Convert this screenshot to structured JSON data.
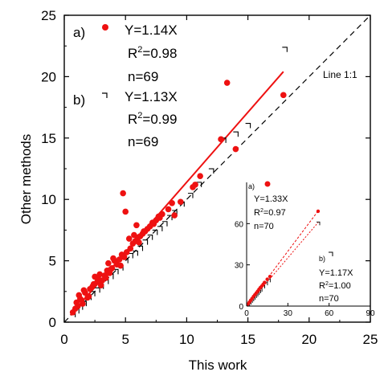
{
  "chart_data": {
    "type": "scatter",
    "xlabel": "This work",
    "ylabel": "Other methods",
    "xlim": [
      0,
      25
    ],
    "ylim": [
      0,
      25
    ],
    "xticks": [
      "0",
      "5",
      "10",
      "15",
      "20",
      "25"
    ],
    "yticks": [
      "0",
      "5",
      "10",
      "15",
      "20",
      "25"
    ],
    "grid": false,
    "series": [
      {
        "name": "a)",
        "marker": "filled-circle",
        "color": "#ee1111",
        "x": [
          0.7,
          0.9,
          1.0,
          1.2,
          1.3,
          1.5,
          1.7,
          1.9,
          2.1,
          2.3,
          2.5,
          2.7,
          2.9,
          3.1,
          3.3,
          3.5,
          3.7,
          3.9,
          4.1,
          4.3,
          4.5,
          4.7,
          4.9,
          5.1,
          5.4,
          5.6,
          5.8,
          6.0,
          6.2,
          6.4,
          6.6,
          6.8,
          7.0,
          7.2,
          7.5,
          7.8,
          8.0,
          8.5,
          9.5,
          10.5,
          11.1,
          13.3,
          14.0,
          17.9,
          4.8,
          3.0,
          1.1,
          2.8,
          3.6,
          5.0,
          5.7,
          6.1,
          7.3,
          4.6,
          3.8,
          2.0,
          1.6,
          2.4,
          4.0,
          5.3,
          6.5,
          7.7,
          10.7,
          12.8,
          8.8,
          9.0,
          1.4,
          3.4,
          5.9
        ],
        "y": [
          0.8,
          1.1,
          1.6,
          2.2,
          1.9,
          1.5,
          2.4,
          2.0,
          2.7,
          2.9,
          3.7,
          3.3,
          3.9,
          3.4,
          3.8,
          4.2,
          4.0,
          4.4,
          5.0,
          4.7,
          5.1,
          5.5,
          5.3,
          5.7,
          6.0,
          6.4,
          6.6,
          6.9,
          7.0,
          7.2,
          7.4,
          7.6,
          7.8,
          8.1,
          8.3,
          8.5,
          8.8,
          9.2,
          9.8,
          11.0,
          11.9,
          19.5,
          14.1,
          18.5,
          10.5,
          3.0,
          1.3,
          3.5,
          4.8,
          9.0,
          7.1,
          6.5,
          8.0,
          4.6,
          4.3,
          2.1,
          2.6,
          3.1,
          5.2,
          6.8,
          7.4,
          8.6,
          11.2,
          14.9,
          9.7,
          8.7,
          1.8,
          3.6,
          7.9
        ],
        "fit": {
          "label": "Y=1.14X",
          "slope": 1.14,
          "r2_label": "R²=0.98",
          "r2_pre": "R",
          "r2_sup": "2",
          "r2_post": "=0.98",
          "n_label": "n=69"
        }
      },
      {
        "name": "b)",
        "marker": "corner-bracket",
        "color": "#000000",
        "x": [
          0.7,
          1.0,
          1.3,
          1.6,
          2.0,
          2.3,
          2.7,
          3.0,
          3.4,
          3.8,
          4.2,
          4.6,
          5.0,
          5.4,
          5.8,
          6.2,
          6.6,
          7.0,
          7.4,
          7.8,
          8.2,
          8.6,
          9.0,
          9.6,
          10.3,
          11.0,
          12.0,
          13.0,
          14.0,
          15.0,
          18.0
        ],
        "y": [
          0.6,
          0.9,
          1.2,
          1.5,
          2.0,
          2.3,
          2.6,
          2.9,
          3.3,
          3.7,
          4.1,
          4.4,
          5.0,
          5.4,
          5.6,
          6.0,
          6.5,
          6.9,
          7.3,
          7.6,
          8.0,
          8.5,
          8.9,
          9.6,
          10.3,
          11.2,
          12.3,
          14.8,
          15.3,
          16.0,
          22.2
        ],
        "fit": {
          "label": "Y=1.13X",
          "slope": 1.13,
          "r2_label": "R²=0.99",
          "r2_pre": "R",
          "r2_sup": "2",
          "r2_post": "=0.99",
          "n_label": "n=69"
        }
      }
    ],
    "reference_line": {
      "label": "Line 1:1",
      "slope": 1
    },
    "inset": {
      "type": "scatter",
      "xlim": [
        0,
        90
      ],
      "ylim": [
        0,
        90
      ],
      "xticks": [
        "0",
        "30",
        "60",
        "90"
      ],
      "yticks": [
        "0",
        "30",
        "60"
      ],
      "series": [
        {
          "name": "a)",
          "marker": "filled-circle",
          "color": "#ee1111",
          "x": [
            1,
            2,
            3,
            4,
            5,
            6,
            7,
            8,
            9,
            10,
            11,
            12,
            13,
            15,
            17,
            52
          ],
          "y": [
            1.5,
            2.8,
            4.2,
            5.5,
            7,
            8.2,
            9.5,
            10.8,
            12.2,
            13.5,
            14.5,
            15.8,
            17.2,
            19.5,
            21.5,
            69
          ],
          "fit": {
            "label": "Y=1.33X",
            "slope": 1.33,
            "r2_label": "R²=0.97",
            "r2_pre": "R",
            "r2_sup": "2",
            "r2_post": "=0.97",
            "n_label": "n=70"
          }
        },
        {
          "name": "b)",
          "marker": "corner-bracket",
          "color": "#000000",
          "x": [
            1,
            2,
            3,
            4,
            5,
            6,
            7,
            8,
            9,
            10,
            12,
            14,
            16,
            52
          ],
          "y": [
            1.2,
            2.3,
            3.5,
            4.7,
            5.8,
            7,
            8.1,
            9.3,
            10.5,
            11.6,
            14,
            16.3,
            18.5,
            60
          ],
          "fit": {
            "label": "Y=1.17X",
            "slope": 1.17,
            "r2_label": "R²=1.00",
            "r2_pre": "R",
            "r2_sup": "2",
            "r2_post": "=1.00",
            "n_label": "n=70"
          }
        }
      ]
    }
  }
}
